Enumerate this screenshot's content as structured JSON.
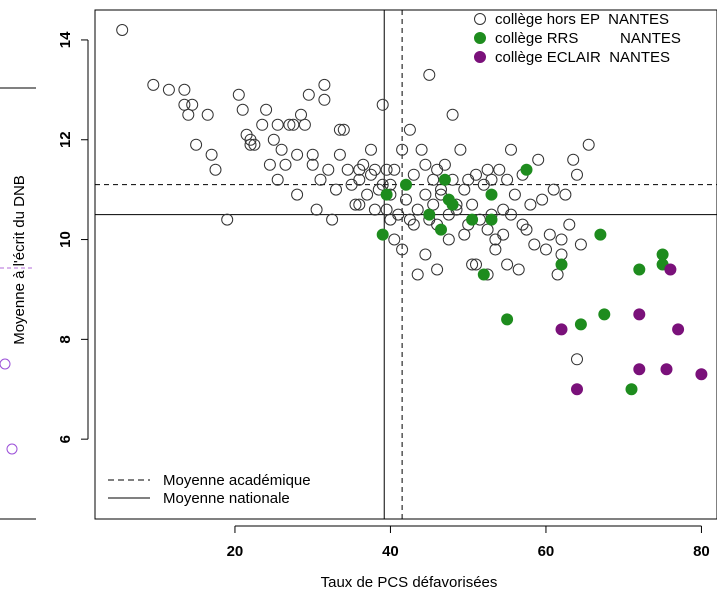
{
  "chart_data": {
    "type": "scatter",
    "xlabel": "Taux de PCS défavorisées",
    "ylabel": "Moyenne à l'écrit du DNB",
    "xlim": [
      2,
      82
    ],
    "ylim": [
      4.4,
      14.6
    ],
    "xticks": [
      20,
      40,
      60,
      80
    ],
    "yticks": [
      6,
      8,
      10,
      12,
      14
    ],
    "grid": false,
    "legend_position": "top-right",
    "reference_lines": {
      "academic": {
        "label": "Moyenne académique",
        "x": 41.5,
        "y": 11.1,
        "style": "dashed"
      },
      "national": {
        "label": "Moyenne nationale",
        "x": 39.2,
        "y": 10.5,
        "style": "solid"
      }
    },
    "series": [
      {
        "name": "collège hors EP  NANTES",
        "marker": "open-circle",
        "color": "#333333",
        "points": [
          [
            5.5,
            14.2
          ],
          [
            9.5,
            13.1
          ],
          [
            11.5,
            13.0
          ],
          [
            13.5,
            12.7
          ],
          [
            14.5,
            12.7
          ],
          [
            13.5,
            13.0
          ],
          [
            14.0,
            12.5
          ],
          [
            15.0,
            11.9
          ],
          [
            16.5,
            12.5
          ],
          [
            17.0,
            11.7
          ],
          [
            17.5,
            11.4
          ],
          [
            19.0,
            10.4
          ],
          [
            20.5,
            12.9
          ],
          [
            21.0,
            12.6
          ],
          [
            21.5,
            12.1
          ],
          [
            22.0,
            11.9
          ],
          [
            22.0,
            12.0
          ],
          [
            22.5,
            11.9
          ],
          [
            23.5,
            12.3
          ],
          [
            24.0,
            12.6
          ],
          [
            24.5,
            11.5
          ],
          [
            25.0,
            12.0
          ],
          [
            25.5,
            12.3
          ],
          [
            25.5,
            11.2
          ],
          [
            26.0,
            11.8
          ],
          [
            26.5,
            11.5
          ],
          [
            27.0,
            12.3
          ],
          [
            27.5,
            12.3
          ],
          [
            28.0,
            11.7
          ],
          [
            28.0,
            10.9
          ],
          [
            28.5,
            12.5
          ],
          [
            29.0,
            12.3
          ],
          [
            29.5,
            12.9
          ],
          [
            30.0,
            11.7
          ],
          [
            30.5,
            10.6
          ],
          [
            30.0,
            11.5
          ],
          [
            31.0,
            11.2
          ],
          [
            31.5,
            13.1
          ],
          [
            31.5,
            12.8
          ],
          [
            32.0,
            11.4
          ],
          [
            32.5,
            10.4
          ],
          [
            33.0,
            11.0
          ],
          [
            33.5,
            12.2
          ],
          [
            33.5,
            11.7
          ],
          [
            34.0,
            12.2
          ],
          [
            34.5,
            11.4
          ],
          [
            35.0,
            11.1
          ],
          [
            35.5,
            10.7
          ],
          [
            36.0,
            11.4
          ],
          [
            36.0,
            11.2
          ],
          [
            36.5,
            11.5
          ],
          [
            37.0,
            10.9
          ],
          [
            37.5,
            11.8
          ],
          [
            37.5,
            11.3
          ],
          [
            38.0,
            11.4
          ],
          [
            38.0,
            10.6
          ],
          [
            39.0,
            12.7
          ],
          [
            39.5,
            11.4
          ],
          [
            39.5,
            10.6
          ],
          [
            40.0,
            11.1
          ],
          [
            40.0,
            10.4
          ],
          [
            40.5,
            11.4
          ],
          [
            40.5,
            10.0
          ],
          [
            41.0,
            10.5
          ],
          [
            41.5,
            11.8
          ],
          [
            42.0,
            10.8
          ],
          [
            42.5,
            12.2
          ],
          [
            43.0,
            11.3
          ],
          [
            43.0,
            10.3
          ],
          [
            43.5,
            10.6
          ],
          [
            44.0,
            11.8
          ],
          [
            44.5,
            11.5
          ],
          [
            44.5,
            10.9
          ],
          [
            45.0,
            13.3
          ],
          [
            45.0,
            10.4
          ],
          [
            45.5,
            11.2
          ],
          [
            46.0,
            11.4
          ],
          [
            46.0,
            10.3
          ],
          [
            46.5,
            10.9
          ],
          [
            47.0,
            11.5
          ],
          [
            47.5,
            10.5
          ],
          [
            48.0,
            12.5
          ],
          [
            48.0,
            11.2
          ],
          [
            48.5,
            10.7
          ],
          [
            49.0,
            11.8
          ],
          [
            49.5,
            11.0
          ],
          [
            49.5,
            10.1
          ],
          [
            50.0,
            11.2
          ],
          [
            50.5,
            10.7
          ],
          [
            50.5,
            9.5
          ],
          [
            51.0,
            11.3
          ],
          [
            51.5,
            10.4
          ],
          [
            52.0,
            11.1
          ],
          [
            52.5,
            11.4
          ],
          [
            52.5,
            10.2
          ],
          [
            53.0,
            11.2
          ],
          [
            53.5,
            10.0
          ],
          [
            53.5,
            9.8
          ],
          [
            54.0,
            11.4
          ],
          [
            54.5,
            10.6
          ],
          [
            55.0,
            11.2
          ],
          [
            55.5,
            11.8
          ],
          [
            55.5,
            10.5
          ],
          [
            56.0,
            10.9
          ],
          [
            56.5,
            9.4
          ],
          [
            57.0,
            10.3
          ],
          [
            57.0,
            11.3
          ],
          [
            58.0,
            10.7
          ],
          [
            58.5,
            9.9
          ],
          [
            59.0,
            11.6
          ],
          [
            59.5,
            10.8
          ],
          [
            60.5,
            10.1
          ],
          [
            61.0,
            11.0
          ],
          [
            61.5,
            9.3
          ],
          [
            62.0,
            9.7
          ],
          [
            62.5,
            10.9
          ],
          [
            63.0,
            10.3
          ],
          [
            63.5,
            11.6
          ],
          [
            64.0,
            11.3
          ],
          [
            64.5,
            9.9
          ],
          [
            65.5,
            11.9
          ],
          [
            64.0,
            7.6
          ],
          [
            62.0,
            10.0
          ],
          [
            60.0,
            9.8
          ],
          [
            52.5,
            9.3
          ],
          [
            51.0,
            9.5
          ],
          [
            46.0,
            9.4
          ],
          [
            44.5,
            9.7
          ],
          [
            43.5,
            9.3
          ],
          [
            41.5,
            9.8
          ],
          [
            47.5,
            10.0
          ],
          [
            50.0,
            10.3
          ],
          [
            48.5,
            10.6
          ],
          [
            46.5,
            11.0
          ],
          [
            45.5,
            10.7
          ],
          [
            42.5,
            10.4
          ],
          [
            40.0,
            10.9
          ],
          [
            39.0,
            11.1
          ],
          [
            36.0,
            10.7
          ],
          [
            38.5,
            11.0
          ],
          [
            53.0,
            10.5
          ],
          [
            54.5,
            10.1
          ],
          [
            57.5,
            10.2
          ],
          [
            55.0,
            9.5
          ]
        ]
      },
      {
        "name": "collège RRS          NANTES",
        "marker": "filled-circle",
        "color": "#1e8c1e",
        "points": [
          [
            39.0,
            10.1
          ],
          [
            39.5,
            10.9
          ],
          [
            42.0,
            11.1
          ],
          [
            45.0,
            10.5
          ],
          [
            46.5,
            10.2
          ],
          [
            47.0,
            11.2
          ],
          [
            47.5,
            10.8
          ],
          [
            48.0,
            10.7
          ],
          [
            50.5,
            10.4
          ],
          [
            52.0,
            9.3
          ],
          [
            53.0,
            10.9
          ],
          [
            53.0,
            10.4
          ],
          [
            55.0,
            8.4
          ],
          [
            57.5,
            11.4
          ],
          [
            62.0,
            9.5
          ],
          [
            64.5,
            8.3
          ],
          [
            67.0,
            10.1
          ],
          [
            67.5,
            8.5
          ],
          [
            71.0,
            7.0
          ],
          [
            72.0,
            9.4
          ],
          [
            75.0,
            9.7
          ],
          [
            75.0,
            9.5
          ]
        ]
      },
      {
        "name": "collège ECLAIR  NANTES",
        "marker": "filled-circle",
        "color": "#7a117a",
        "points": [
          [
            62.0,
            8.2
          ],
          [
            64.0,
            7.0
          ],
          [
            72.0,
            8.5
          ],
          [
            72.0,
            7.4
          ],
          [
            75.5,
            7.4
          ],
          [
            76.0,
            9.4
          ],
          [
            77.0,
            8.2
          ],
          [
            80.0,
            7.3
          ]
        ]
      }
    ]
  }
}
